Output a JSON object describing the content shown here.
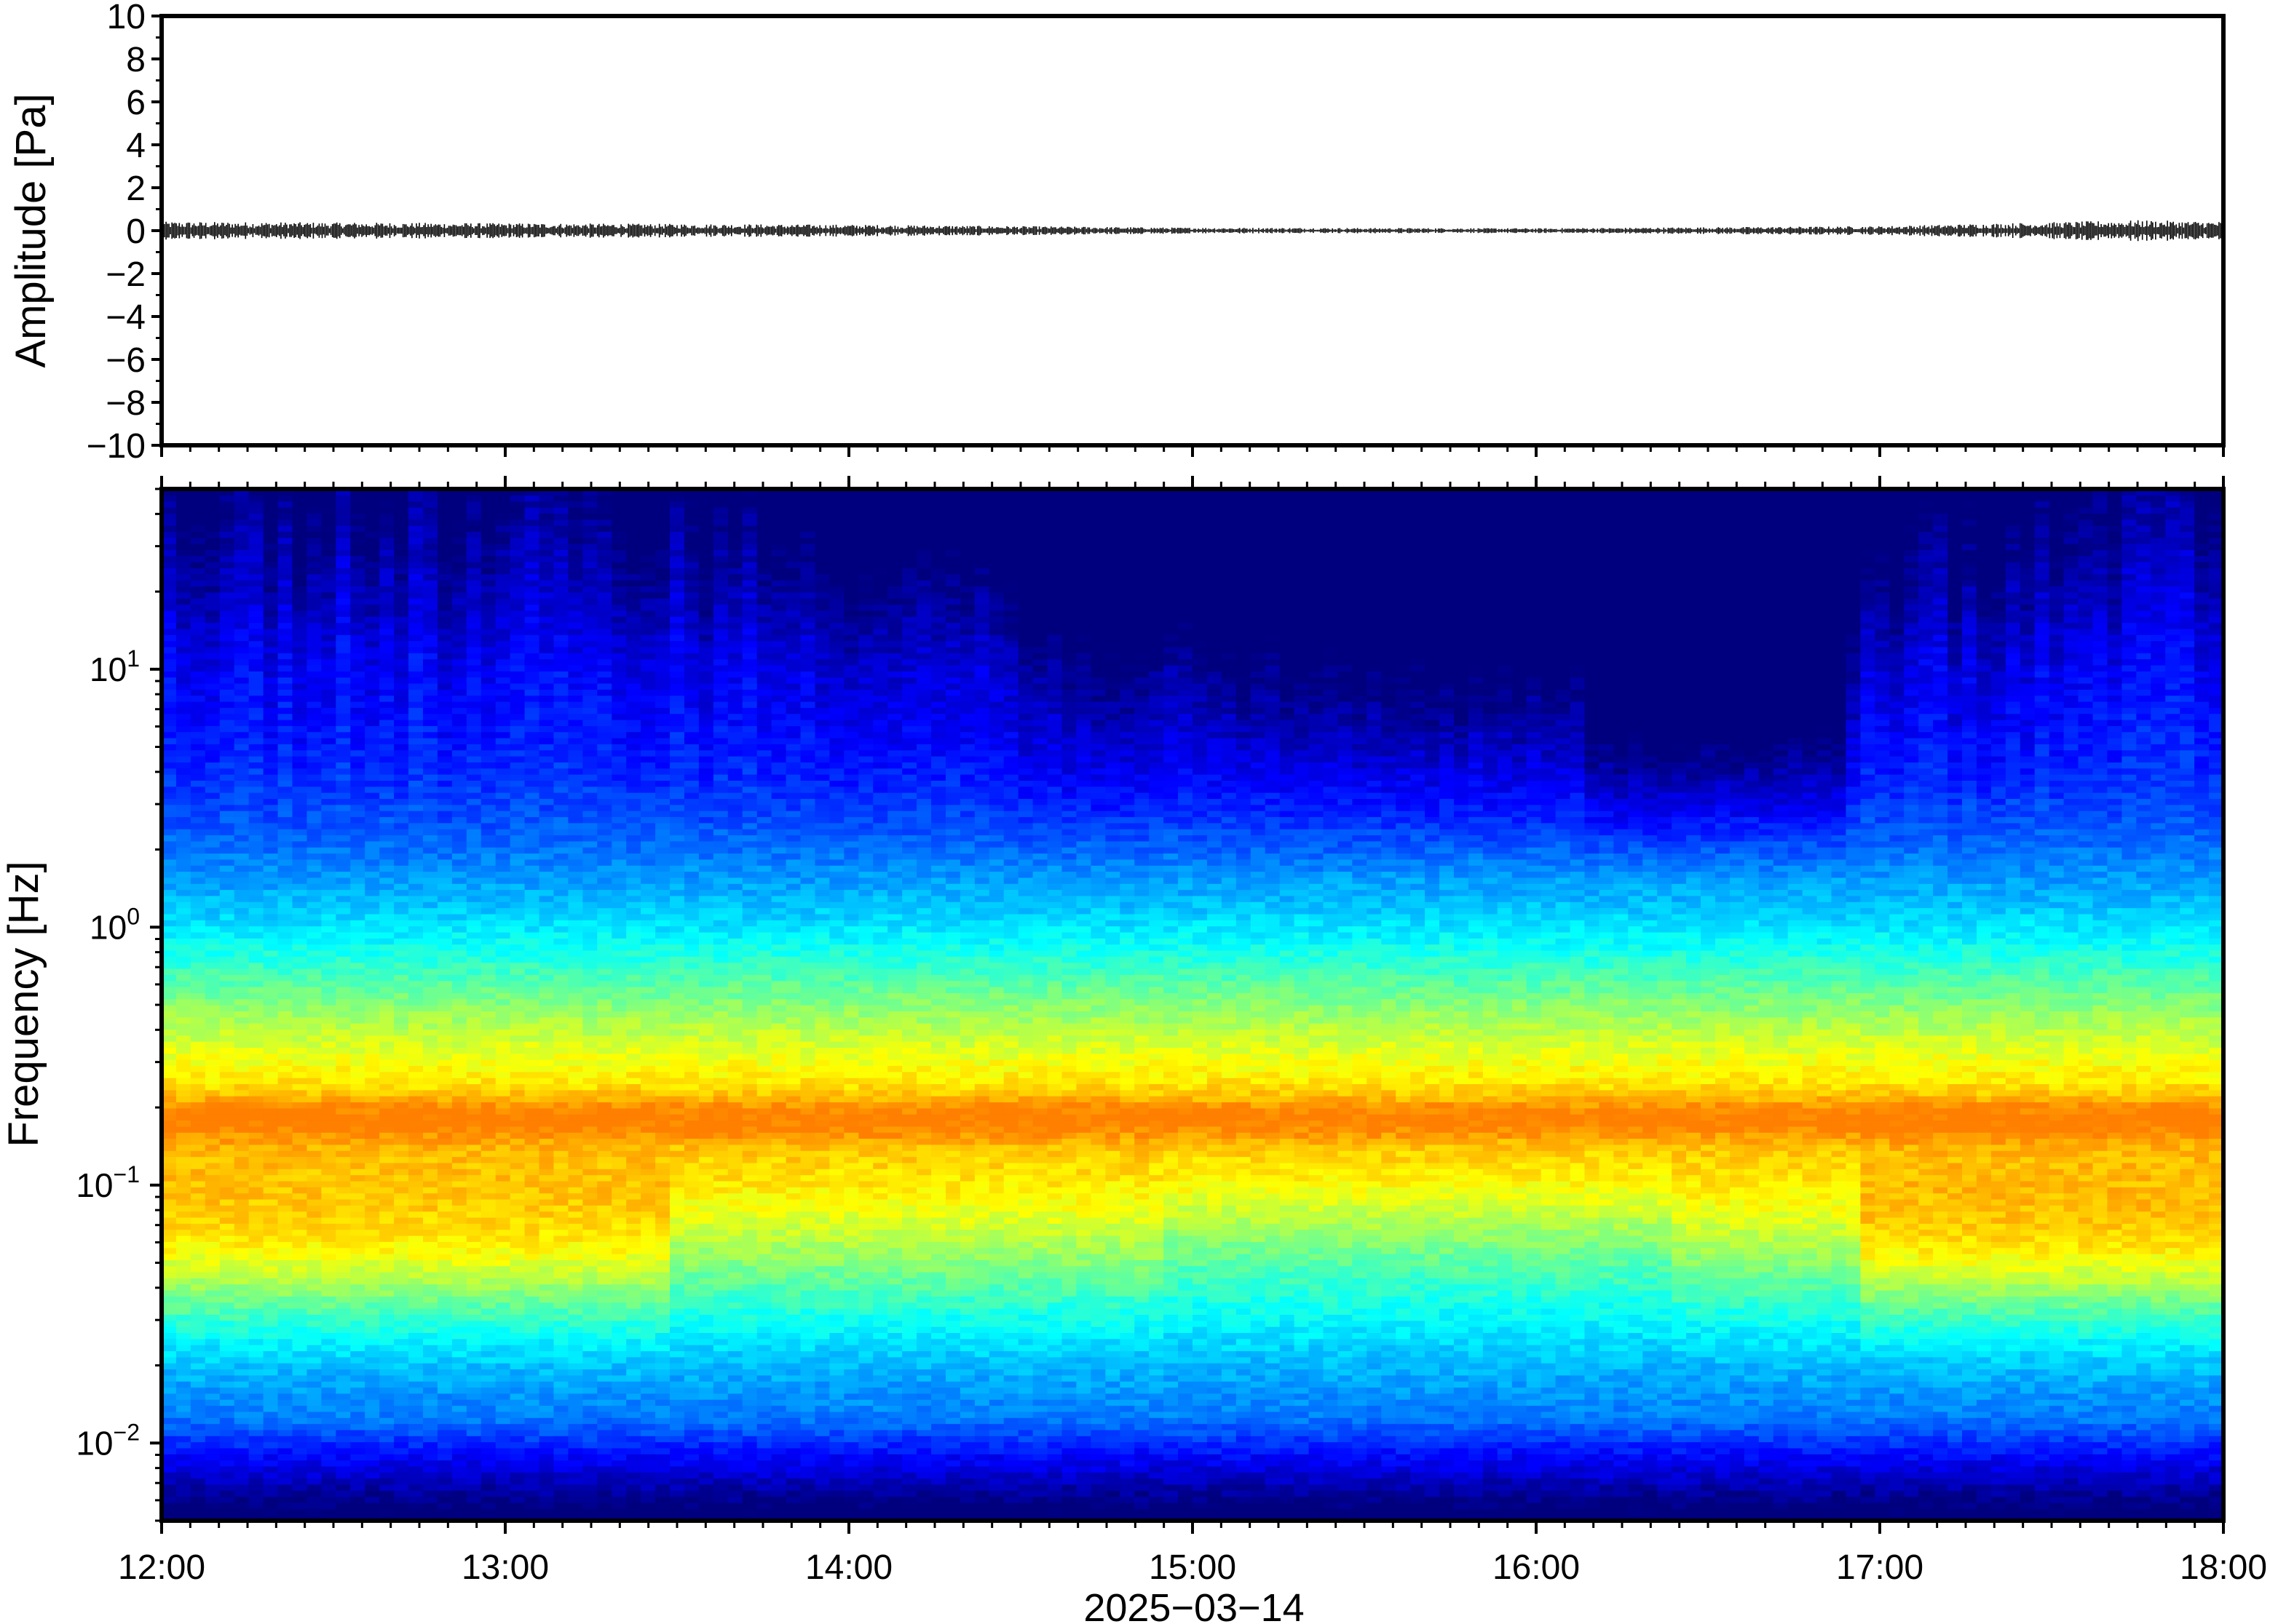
{
  "chart_data": [
    {
      "type": "line",
      "panel": "waveform",
      "ylabel": "Amplitude [Pa]",
      "ylim": [
        -10,
        10
      ],
      "yticks": [
        10,
        8,
        6,
        4,
        2,
        0,
        -2,
        -4,
        -6,
        -8,
        -10
      ],
      "ytick_labels": [
        "10",
        "8",
        "6",
        "4",
        "2",
        "0",
        "−2",
        "−4",
        "−6",
        "−8",
        "−10"
      ],
      "x_range": [
        "12:00",
        "18:00"
      ],
      "series": [
        {
          "x": [
            "12:00",
            "13:00",
            "14:00",
            "15:00",
            "16:00",
            "17:00",
            "17:45",
            "18:00"
          ],
          "y_amplitude_envelope": [
            0.3,
            0.25,
            0.2,
            0.1,
            0.08,
            0.15,
            0.35,
            0.3
          ],
          "y_center": 0
        }
      ],
      "color": "#000000",
      "grid": false
    },
    {
      "type": "heatmap",
      "panel": "spectrogram",
      "ylabel": "Frequency [Hz]",
      "yscale": "log",
      "ylim": [
        0.005,
        50
      ],
      "yticks": [
        0.01,
        0.1,
        1,
        10
      ],
      "ytick_labels": [
        {
          "base": "10",
          "exp": "−2"
        },
        {
          "base": "10",
          "exp": "−1"
        },
        {
          "base": "10",
          "exp": "0"
        },
        {
          "base": "10",
          "exp": "1"
        }
      ],
      "xlabel": "2025−03−14",
      "xticks": [
        "12:00",
        "13:00",
        "14:00",
        "15:00",
        "16:00",
        "17:00",
        "18:00"
      ],
      "colormap": "jet",
      "colormap_stops": [
        "#00007f",
        "#0000ff",
        "#007fff",
        "#00ffff",
        "#7fff7f",
        "#ffff00",
        "#ff7f00"
      ],
      "grid": false,
      "band_summary": [
        {
          "frequency_hz": 0.18,
          "level": "high (orange)"
        },
        {
          "frequency_hz": 0.05,
          "level": "high (orange/yellow) before 13:30 and after 17:00"
        },
        {
          "frequency_hz": 0.008,
          "level": "low (blue)"
        },
        {
          "frequency_hz": 5,
          "level": "low (dark blue), darkest between 16:10 and 16:55"
        }
      ]
    }
  ]
}
